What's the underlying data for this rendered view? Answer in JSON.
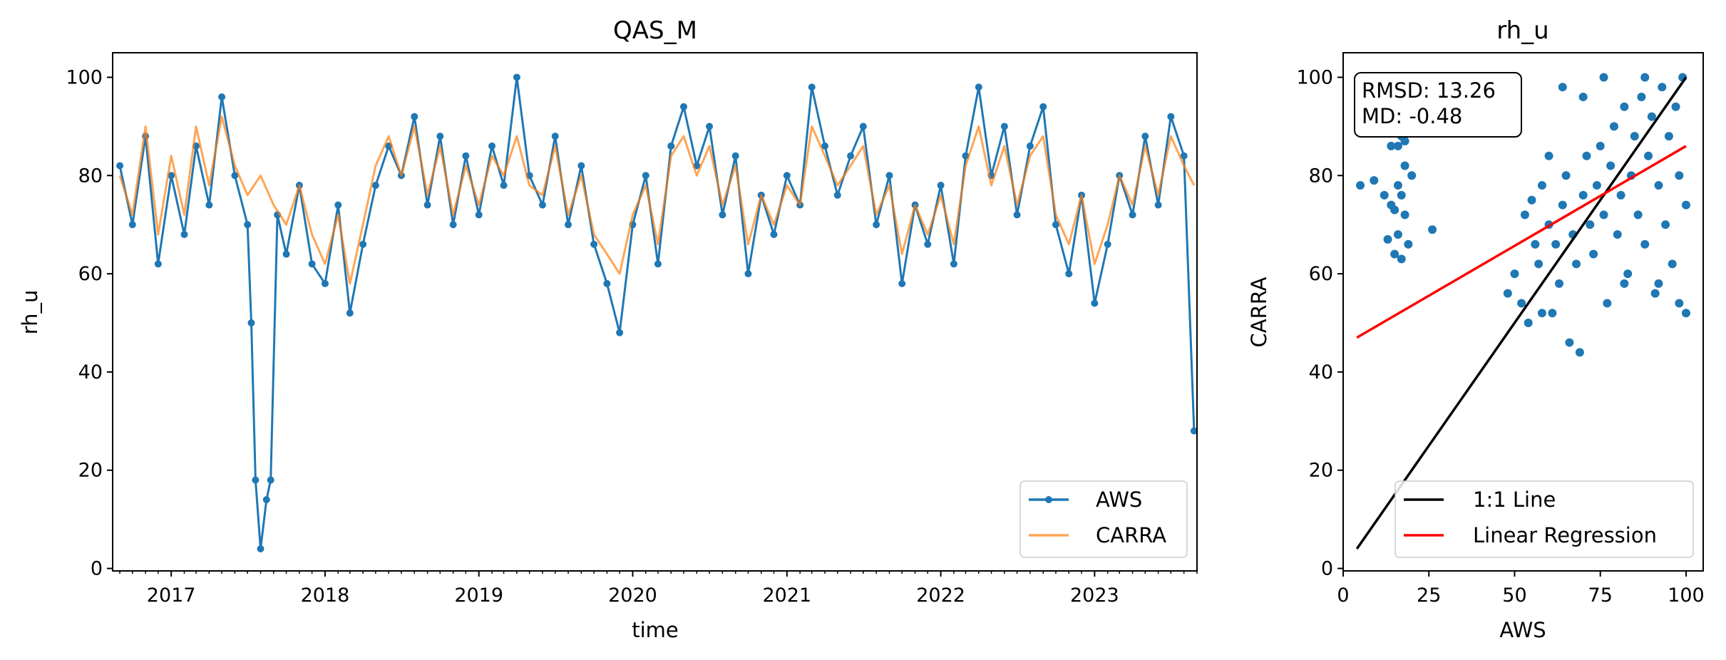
{
  "chart_data": [
    {
      "type": "line",
      "title": "QAS_M",
      "xlabel": "time",
      "ylabel": "rh_u",
      "x_ticks": [
        "2017",
        "2018",
        "2019",
        "2020",
        "2021",
        "2022",
        "2023"
      ],
      "x_range": [
        "2016-08-15",
        "2023-09-01"
      ],
      "y_ticks": [
        "0",
        "20",
        "40",
        "60",
        "80",
        "100"
      ],
      "ylim": [
        -0.5,
        105
      ],
      "grid": false,
      "legend_position": "lower right",
      "series": [
        {
          "name": "AWS",
          "color": "#1f77b4",
          "marker": "circle",
          "points": [
            [
              "2016-09-01",
              82
            ],
            [
              "2016-10-01",
              70
            ],
            [
              "2016-11-01",
              88
            ],
            [
              "2016-12-01",
              62
            ],
            [
              "2017-01-01",
              80
            ],
            [
              "2017-02-01",
              68
            ],
            [
              "2017-03-01",
              86
            ],
            [
              "2017-04-01",
              74
            ],
            [
              "2017-05-01",
              96
            ],
            [
              "2017-06-01",
              80
            ],
            [
              "2017-07-01",
              70
            ],
            [
              "2017-07-10",
              50
            ],
            [
              "2017-07-20",
              18
            ],
            [
              "2017-08-01",
              4
            ],
            [
              "2017-08-15",
              14
            ],
            [
              "2017-08-25",
              18
            ],
            [
              "2017-09-10",
              72
            ],
            [
              "2017-10-01",
              64
            ],
            [
              "2017-11-01",
              78
            ],
            [
              "2017-12-01",
              62
            ],
            [
              "2018-01-01",
              58
            ],
            [
              "2018-02-01",
              74
            ],
            [
              "2018-03-01",
              52
            ],
            [
              "2018-04-01",
              66
            ],
            [
              "2018-05-01",
              78
            ],
            [
              "2018-06-01",
              86
            ],
            [
              "2018-07-01",
              80
            ],
            [
              "2018-08-01",
              92
            ],
            [
              "2018-09-01",
              74
            ],
            [
              "2018-10-01",
              88
            ],
            [
              "2018-11-01",
              70
            ],
            [
              "2018-12-01",
              84
            ],
            [
              "2019-01-01",
              72
            ],
            [
              "2019-02-01",
              86
            ],
            [
              "2019-03-01",
              78
            ],
            [
              "2019-04-01",
              100
            ],
            [
              "2019-05-01",
              80
            ],
            [
              "2019-06-01",
              74
            ],
            [
              "2019-07-01",
              88
            ],
            [
              "2019-08-01",
              70
            ],
            [
              "2019-09-01",
              82
            ],
            [
              "2019-10-01",
              66
            ],
            [
              "2019-11-01",
              58
            ],
            [
              "2019-12-01",
              48
            ],
            [
              "2020-01-01",
              70
            ],
            [
              "2020-02-01",
              80
            ],
            [
              "2020-03-01",
              62
            ],
            [
              "2020-04-01",
              86
            ],
            [
              "2020-05-01",
              94
            ],
            [
              "2020-06-01",
              82
            ],
            [
              "2020-07-01",
              90
            ],
            [
              "2020-08-01",
              72
            ],
            [
              "2020-09-01",
              84
            ],
            [
              "2020-10-01",
              60
            ],
            [
              "2020-11-01",
              76
            ],
            [
              "2020-12-01",
              68
            ],
            [
              "2021-01-01",
              80
            ],
            [
              "2021-02-01",
              74
            ],
            [
              "2021-03-01",
              98
            ],
            [
              "2021-04-01",
              86
            ],
            [
              "2021-05-01",
              76
            ],
            [
              "2021-06-01",
              84
            ],
            [
              "2021-07-01",
              90
            ],
            [
              "2021-08-01",
              70
            ],
            [
              "2021-09-01",
              80
            ],
            [
              "2021-10-01",
              58
            ],
            [
              "2021-11-01",
              74
            ],
            [
              "2021-12-01",
              66
            ],
            [
              "2022-01-01",
              78
            ],
            [
              "2022-02-01",
              62
            ],
            [
              "2022-03-01",
              84
            ],
            [
              "2022-04-01",
              98
            ],
            [
              "2022-05-01",
              80
            ],
            [
              "2022-06-01",
              90
            ],
            [
              "2022-07-01",
              72
            ],
            [
              "2022-08-01",
              86
            ],
            [
              "2022-09-01",
              94
            ],
            [
              "2022-10-01",
              70
            ],
            [
              "2022-11-01",
              60
            ],
            [
              "2022-12-01",
              76
            ],
            [
              "2023-01-01",
              54
            ],
            [
              "2023-02-01",
              66
            ],
            [
              "2023-03-01",
              80
            ],
            [
              "2023-04-01",
              72
            ],
            [
              "2023-05-01",
              88
            ],
            [
              "2023-06-01",
              74
            ],
            [
              "2023-07-01",
              92
            ],
            [
              "2023-08-01",
              84
            ],
            [
              "2023-08-25",
              28
            ]
          ]
        },
        {
          "name": "CARRA",
          "color": "#ff7f0e",
          "marker": "none",
          "points": [
            [
              "2016-09-01",
              80
            ],
            [
              "2016-10-01",
              72
            ],
            [
              "2016-11-01",
              90
            ],
            [
              "2016-12-01",
              68
            ],
            [
              "2017-01-01",
              84
            ],
            [
              "2017-02-01",
              72
            ],
            [
              "2017-03-01",
              90
            ],
            [
              "2017-04-01",
              78
            ],
            [
              "2017-05-01",
              92
            ],
            [
              "2017-06-01",
              82
            ],
            [
              "2017-07-01",
              76
            ],
            [
              "2017-08-01",
              80
            ],
            [
              "2017-09-01",
              74
            ],
            [
              "2017-10-01",
              70
            ],
            [
              "2017-11-01",
              78
            ],
            [
              "2017-12-01",
              68
            ],
            [
              "2018-01-01",
              62
            ],
            [
              "2018-02-01",
              72
            ],
            [
              "2018-03-01",
              58
            ],
            [
              "2018-04-01",
              70
            ],
            [
              "2018-05-01",
              82
            ],
            [
              "2018-06-01",
              88
            ],
            [
              "2018-07-01",
              80
            ],
            [
              "2018-08-01",
              90
            ],
            [
              "2018-09-01",
              76
            ],
            [
              "2018-10-01",
              86
            ],
            [
              "2018-11-01",
              72
            ],
            [
              "2018-12-01",
              82
            ],
            [
              "2019-01-01",
              74
            ],
            [
              "2019-02-01",
              84
            ],
            [
              "2019-03-01",
              80
            ],
            [
              "2019-04-01",
              88
            ],
            [
              "2019-05-01",
              78
            ],
            [
              "2019-06-01",
              76
            ],
            [
              "2019-07-01",
              86
            ],
            [
              "2019-08-01",
              72
            ],
            [
              "2019-09-01",
              80
            ],
            [
              "2019-10-01",
              68
            ],
            [
              "2019-11-01",
              64
            ],
            [
              "2019-12-01",
              60
            ],
            [
              "2020-01-01",
              72
            ],
            [
              "2020-02-01",
              78
            ],
            [
              "2020-03-01",
              66
            ],
            [
              "2020-04-01",
              84
            ],
            [
              "2020-05-01",
              88
            ],
            [
              "2020-06-01",
              80
            ],
            [
              "2020-07-01",
              86
            ],
            [
              "2020-08-01",
              74
            ],
            [
              "2020-09-01",
              82
            ],
            [
              "2020-10-01",
              66
            ],
            [
              "2020-11-01",
              76
            ],
            [
              "2020-12-01",
              70
            ],
            [
              "2021-01-01",
              78
            ],
            [
              "2021-02-01",
              74
            ],
            [
              "2021-03-01",
              90
            ],
            [
              "2021-04-01",
              84
            ],
            [
              "2021-05-01",
              78
            ],
            [
              "2021-06-01",
              82
            ],
            [
              "2021-07-01",
              86
            ],
            [
              "2021-08-01",
              72
            ],
            [
              "2021-09-01",
              78
            ],
            [
              "2021-10-01",
              64
            ],
            [
              "2021-11-01",
              74
            ],
            [
              "2021-12-01",
              68
            ],
            [
              "2022-01-01",
              76
            ],
            [
              "2022-02-01",
              66
            ],
            [
              "2022-03-01",
              82
            ],
            [
              "2022-04-01",
              90
            ],
            [
              "2022-05-01",
              78
            ],
            [
              "2022-06-01",
              86
            ],
            [
              "2022-07-01",
              74
            ],
            [
              "2022-08-01",
              84
            ],
            [
              "2022-09-01",
              88
            ],
            [
              "2022-10-01",
              72
            ],
            [
              "2022-11-01",
              66
            ],
            [
              "2022-12-01",
              76
            ],
            [
              "2023-01-01",
              62
            ],
            [
              "2023-02-01",
              70
            ],
            [
              "2023-03-01",
              80
            ],
            [
              "2023-04-01",
              74
            ],
            [
              "2023-05-01",
              86
            ],
            [
              "2023-06-01",
              76
            ],
            [
              "2023-07-01",
              88
            ],
            [
              "2023-08-01",
              82
            ],
            [
              "2023-08-25",
              78
            ]
          ]
        }
      ]
    },
    {
      "type": "scatter",
      "title": "rh_u",
      "xlabel": "AWS",
      "ylabel": "CARRA",
      "x_ticks": [
        "0",
        "25",
        "50",
        "75",
        "100"
      ],
      "y_ticks": [
        "0",
        "20",
        "40",
        "60",
        "80",
        "100"
      ],
      "xlim": [
        0,
        105
      ],
      "ylim": [
        -0.5,
        105
      ],
      "grid": false,
      "legend_position": "lower right",
      "stats_text": [
        "RMSD: 13.26",
        "MD: -0.48"
      ],
      "scatter_color": "#1f77b4",
      "points": [
        [
          5,
          78
        ],
        [
          9,
          79
        ],
        [
          12,
          76
        ],
        [
          14,
          74
        ],
        [
          15,
          73
        ],
        [
          16,
          78
        ],
        [
          17,
          76
        ],
        [
          18,
          72
        ],
        [
          13,
          67
        ],
        [
          16,
          68
        ],
        [
          19,
          66
        ],
        [
          15,
          64
        ],
        [
          17,
          63
        ],
        [
          26,
          69
        ],
        [
          18,
          82
        ],
        [
          20,
          80
        ],
        [
          14,
          86
        ],
        [
          17,
          88
        ],
        [
          16,
          86
        ],
        [
          18,
          87
        ],
        [
          48,
          56
        ],
        [
          50,
          60
        ],
        [
          52,
          54
        ],
        [
          53,
          72
        ],
        [
          55,
          75
        ],
        [
          56,
          66
        ],
        [
          57,
          62
        ],
        [
          58,
          78
        ],
        [
          60,
          70
        ],
        [
          61,
          52
        ],
        [
          62,
          66
        ],
        [
          63,
          58
        ],
        [
          64,
          74
        ],
        [
          65,
          80
        ],
        [
          66,
          46
        ],
        [
          67,
          68
        ],
        [
          68,
          62
        ],
        [
          69,
          44
        ],
        [
          70,
          76
        ],
        [
          71,
          84
        ],
        [
          72,
          70
        ],
        [
          73,
          64
        ],
        [
          74,
          78
        ],
        [
          75,
          86
        ],
        [
          76,
          72
        ],
        [
          77,
          54
        ],
        [
          78,
          82
        ],
        [
          79,
          90
        ],
        [
          80,
          68
        ],
        [
          81,
          76
        ],
        [
          82,
          94
        ],
        [
          83,
          60
        ],
        [
          84,
          80
        ],
        [
          85,
          88
        ],
        [
          86,
          72
        ],
        [
          87,
          96
        ],
        [
          88,
          66
        ],
        [
          89,
          84
        ],
        [
          90,
          92
        ],
        [
          91,
          56
        ],
        [
          92,
          78
        ],
        [
          93,
          98
        ],
        [
          94,
          70
        ],
        [
          95,
          88
        ],
        [
          96,
          62
        ],
        [
          97,
          94
        ],
        [
          98,
          80
        ],
        [
          99,
          100
        ],
        [
          100,
          74
        ],
        [
          100,
          52
        ],
        [
          64,
          98
        ],
        [
          70,
          96
        ],
        [
          88,
          100
        ],
        [
          54,
          50
        ],
        [
          58,
          52
        ],
        [
          60,
          84
        ],
        [
          76,
          100
        ],
        [
          82,
          58
        ],
        [
          92,
          58
        ],
        [
          98,
          54
        ]
      ],
      "series": [
        {
          "name": "1:1 Line",
          "color": "#000000",
          "x": [
            4,
            100
          ],
          "y": [
            4,
            100
          ]
        },
        {
          "name": "Linear Regression",
          "color": "#ff0000",
          "x": [
            4,
            100
          ],
          "y": [
            47,
            86
          ]
        }
      ]
    }
  ]
}
